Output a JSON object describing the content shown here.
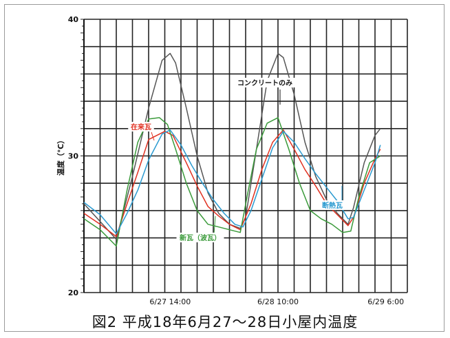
{
  "caption": "図2 平成18年6月27〜28日小屋内温度",
  "chart_data": {
    "type": "line",
    "ylabel": "温度（℃）",
    "ylim": [
      20,
      40
    ],
    "xlim": [
      0,
      60
    ],
    "yticks": [
      20,
      30,
      40
    ],
    "grid": true,
    "xticks": [
      {
        "x": 16,
        "label": "6/27 14:00"
      },
      {
        "x": 36,
        "label": "6/28 10:00"
      },
      {
        "x": 56,
        "label": "6/29 6:00"
      }
    ],
    "series": [
      {
        "name": "コンクリートのみ",
        "color": "#555555",
        "points": [
          [
            0,
            26.5
          ],
          [
            3,
            25.2
          ],
          [
            6,
            23.9
          ],
          [
            9,
            28.5
          ],
          [
            12,
            33.5
          ],
          [
            14.5,
            37.0
          ],
          [
            16,
            37.5
          ],
          [
            17,
            36.8
          ],
          [
            19,
            33.5
          ],
          [
            21,
            30.0
          ],
          [
            23,
            27.3
          ],
          [
            25,
            25.8
          ],
          [
            27,
            25.0
          ],
          [
            29,
            24.7
          ],
          [
            30,
            25.5
          ],
          [
            32,
            30.5
          ],
          [
            34,
            35.5
          ],
          [
            36,
            37.5
          ],
          [
            37,
            37.2
          ],
          [
            39,
            34.5
          ],
          [
            41,
            31.0
          ],
          [
            43,
            28.5
          ],
          [
            45,
            26.8
          ],
          [
            47,
            25.8
          ],
          [
            49,
            25.0
          ],
          [
            50,
            26.2
          ],
          [
            52,
            29.5
          ],
          [
            54,
            31.5
          ],
          [
            55,
            32.0
          ]
        ]
      },
      {
        "name": "在来瓦",
        "color": "#e03020",
        "points": [
          [
            0,
            25.8
          ],
          [
            3,
            25.0
          ],
          [
            6,
            24.1
          ],
          [
            8,
            26.5
          ],
          [
            10,
            28.8
          ],
          [
            12,
            31.2
          ],
          [
            15,
            31.8
          ],
          [
            16.5,
            31.5
          ],
          [
            19,
            29.5
          ],
          [
            21,
            27.8
          ],
          [
            23,
            26.3
          ],
          [
            25,
            25.6
          ],
          [
            27,
            25.0
          ],
          [
            29,
            24.6
          ],
          [
            31,
            26.5
          ],
          [
            33,
            29.0
          ],
          [
            35,
            31.0
          ],
          [
            37,
            31.9
          ],
          [
            39,
            30.5
          ],
          [
            41,
            29.0
          ],
          [
            43,
            27.8
          ],
          [
            45,
            26.5
          ],
          [
            47,
            25.7
          ],
          [
            49,
            24.9
          ],
          [
            50,
            25.5
          ],
          [
            52,
            28.0
          ],
          [
            54,
            29.8
          ],
          [
            55,
            30.5
          ]
        ]
      },
      {
        "name": "新瓦（波瓦）",
        "color": "#3a9a3a",
        "points": [
          [
            0,
            25.4
          ],
          [
            3,
            24.6
          ],
          [
            6,
            23.4
          ],
          [
            8,
            27.5
          ],
          [
            10,
            31.0
          ],
          [
            12,
            32.7
          ],
          [
            14,
            32.8
          ],
          [
            15.5,
            32.3
          ],
          [
            17,
            30.5
          ],
          [
            19,
            28.0
          ],
          [
            21,
            26.0
          ],
          [
            23,
            25.0
          ],
          [
            25,
            24.8
          ],
          [
            27,
            24.6
          ],
          [
            29,
            24.4
          ],
          [
            30.5,
            27.5
          ],
          [
            32,
            30.5
          ],
          [
            34,
            32.4
          ],
          [
            36,
            32.8
          ],
          [
            38,
            30.5
          ],
          [
            40,
            28.0
          ],
          [
            42,
            26.0
          ],
          [
            44,
            25.4
          ],
          [
            46,
            25.0
          ],
          [
            48,
            24.4
          ],
          [
            49.5,
            24.5
          ],
          [
            51,
            27.0
          ],
          [
            53,
            29.5
          ],
          [
            55,
            30.0
          ]
        ]
      },
      {
        "name": "断熱瓦",
        "color": "#2a9ad0",
        "points": [
          [
            0,
            26.6
          ],
          [
            3,
            25.7
          ],
          [
            6,
            24.3
          ],
          [
            8,
            25.8
          ],
          [
            10,
            27.5
          ],
          [
            12,
            29.7
          ],
          [
            14.5,
            31.6
          ],
          [
            16,
            31.9
          ],
          [
            18,
            30.8
          ],
          [
            20,
            29.3
          ],
          [
            22,
            28.0
          ],
          [
            24,
            26.8
          ],
          [
            26,
            25.8
          ],
          [
            28,
            25.0
          ],
          [
            29.5,
            24.8
          ],
          [
            31,
            26.0
          ],
          [
            33,
            28.3
          ],
          [
            35,
            30.6
          ],
          [
            37,
            31.8
          ],
          [
            39,
            31.0
          ],
          [
            41,
            29.8
          ],
          [
            43,
            28.7
          ],
          [
            45,
            27.7
          ],
          [
            47,
            26.7
          ],
          [
            49,
            25.4
          ],
          [
            50,
            25.5
          ],
          [
            52,
            27.5
          ],
          [
            54,
            29.5
          ],
          [
            55,
            30.8
          ]
        ]
      }
    ],
    "annotations": [
      {
        "text": "コンクリートのみ",
        "series": "コンクリートのみ"
      },
      {
        "text": "在来瓦",
        "series": "在来瓦"
      },
      {
        "text": "新瓦（波瓦）",
        "series": "新瓦（波瓦）"
      },
      {
        "text": "断熱瓦",
        "series": "断熱瓦"
      }
    ]
  }
}
